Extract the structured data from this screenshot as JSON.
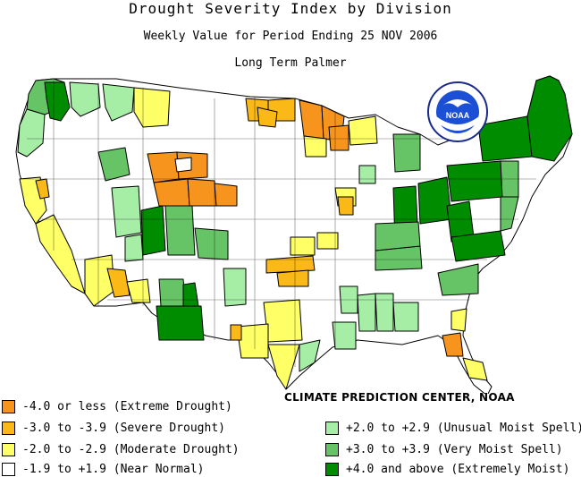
{
  "title": "Drought Severity Index by Division",
  "subtitle": "Weekly Value for Period Ending 25 NOV 2006",
  "index_name": "Long Term Palmer",
  "credit": "CLIMATE PREDICTION CENTER, NOAA",
  "logo_text": "NOAA",
  "colors": {
    "extreme_drought": "#f7941d",
    "severe_drought": "#fbb917",
    "moderate_drought": "#ffff66",
    "near_normal": "#ffffff",
    "unusual_moist": "#a6eda6",
    "very_moist": "#66c466",
    "extremely_moist": "#008c00"
  },
  "legend": {
    "left": [
      {
        "label": "-4.0 or less (Extreme Drought)",
        "color": "#f7941d"
      },
      {
        "label": "-3.0 to -3.9 (Severe Drought)",
        "color": "#fbb917"
      },
      {
        "label": "-2.0 to -2.9 (Moderate Drought)",
        "color": "#ffff66"
      },
      {
        "label": "-1.9 to +1.9 (Near Normal)",
        "color": "#ffffff"
      }
    ],
    "right": [
      {
        "label": "+2.0 to +2.9 (Unusual Moist Spell)",
        "color": "#a6eda6"
      },
      {
        "label": "+3.0 to +3.9 (Very Moist Spell)",
        "color": "#66c466"
      },
      {
        "label": "+4.0 and above (Extremely Moist)",
        "color": "#008c00"
      }
    ]
  }
}
